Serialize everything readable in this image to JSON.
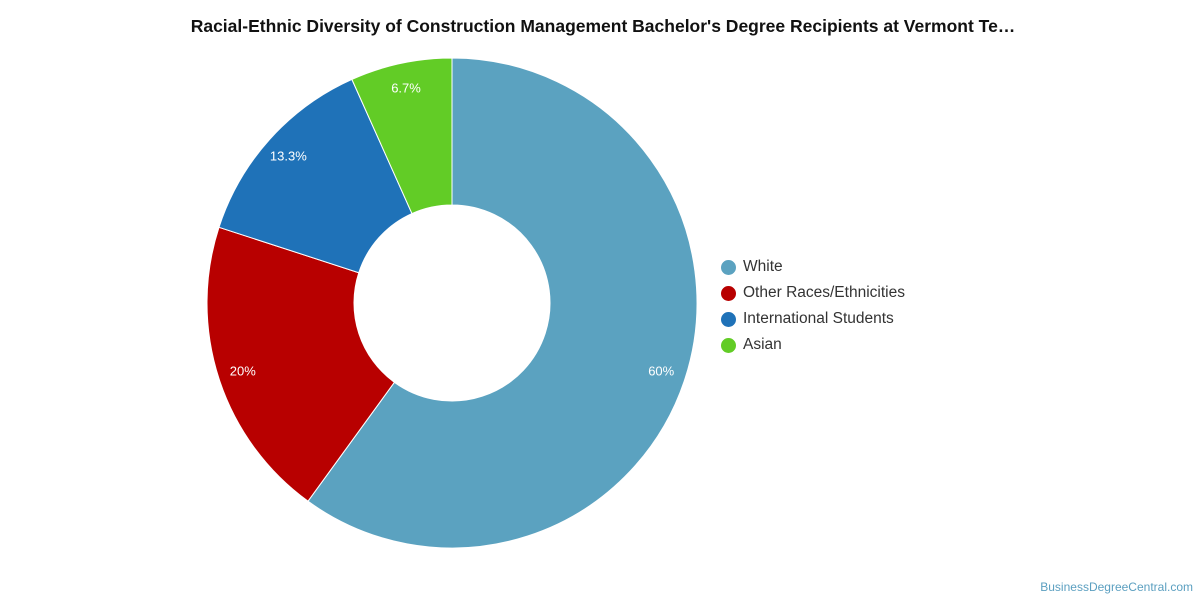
{
  "chart_data": {
    "type": "pie",
    "donut": true,
    "title": "Racial-Ethnic Diversity of Construction Management Bachelor's Degree Recipients at Vermont Te…",
    "series": [
      {
        "name": "White",
        "value": 60,
        "label": "60%",
        "color": "#5ba2c0"
      },
      {
        "name": "Other Races/Ethnicities",
        "value": 20,
        "label": "20%",
        "color": "#b80000"
      },
      {
        "name": "International Students",
        "value": 13.3,
        "label": "13.3%",
        "color": "#1f72b8"
      },
      {
        "name": "Asian",
        "value": 6.7,
        "label": "6.7%",
        "color": "#62cc26"
      }
    ],
    "legend_position": "right"
  },
  "watermark": "BusinessDegreeCentral.com"
}
